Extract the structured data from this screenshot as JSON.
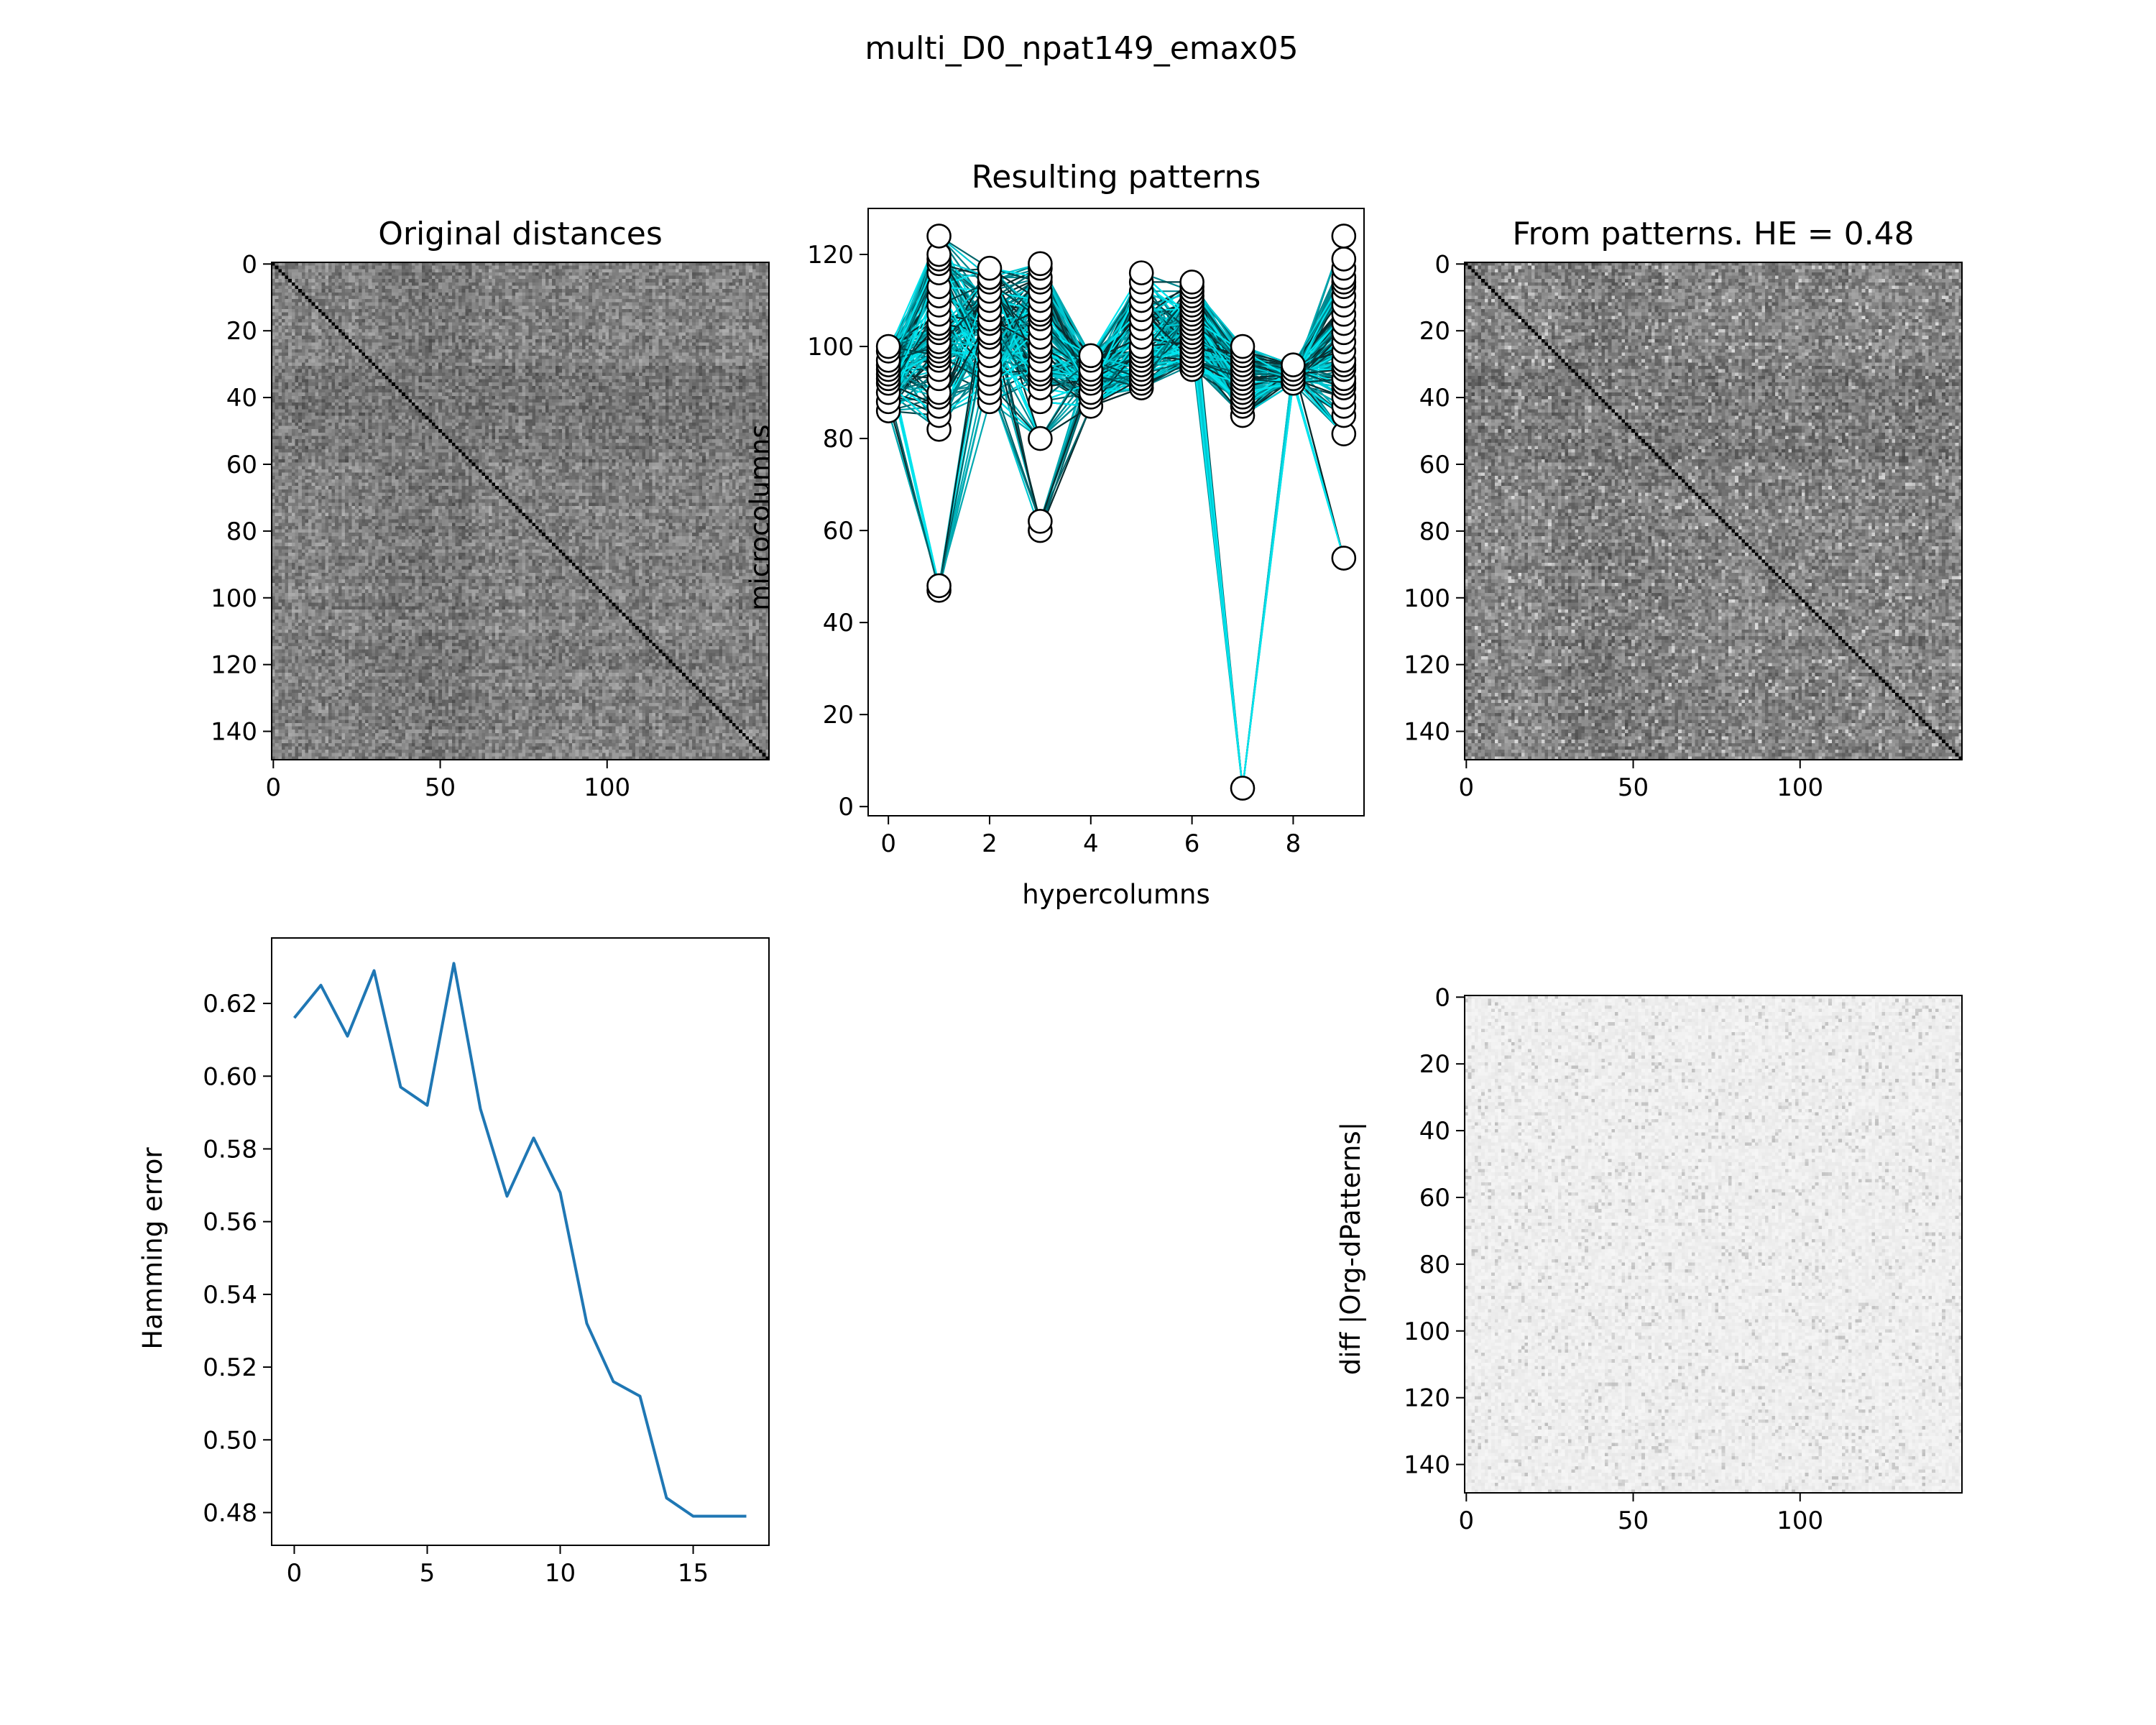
{
  "suptitle": "multi_D0_npat149_emax05",
  "chart_data": [
    {
      "id": "original",
      "type": "heatmap",
      "title": "Original distances",
      "n": 149,
      "cmap": "gray",
      "diagonal": 0,
      "xticks": [
        0,
        50,
        100
      ],
      "yticks": [
        0,
        20,
        40,
        60,
        80,
        100,
        120,
        140
      ]
    },
    {
      "id": "patterns",
      "type": "line",
      "title": "Resulting patterns",
      "xlabel": "hypercolumns",
      "ylabel": "microcolumns",
      "xlim": [
        -0.4,
        9.4
      ],
      "ylim": [
        -2,
        130
      ],
      "xticks": [
        0,
        2,
        4,
        6,
        8
      ],
      "yticks": [
        0,
        20,
        40,
        60,
        80,
        100,
        120
      ],
      "num_patterns": 149,
      "colors": [
        "#00e5ee",
        "#00c8d2",
        "#00a8b0",
        "#00868e",
        "#00646a",
        "#004448",
        "#0a2a2c"
      ],
      "unit_values": [
        [
          86,
          88,
          90,
          92,
          93,
          94,
          95,
          96,
          97,
          99,
          100
        ],
        [
          47,
          48,
          82,
          85,
          87,
          89,
          90,
          93,
          95,
          97,
          98,
          99,
          100,
          101,
          103,
          104,
          105,
          107,
          109,
          111,
          113,
          116,
          118,
          119,
          120,
          124
        ],
        [
          88,
          90,
          92,
          94,
          96,
          98,
          100,
          102,
          103,
          105,
          106,
          108,
          110,
          112,
          114,
          115,
          117
        ],
        [
          60,
          62,
          80,
          88,
          91,
          93,
          94,
          95,
          97,
          99,
          100,
          102,
          104,
          106,
          107,
          108,
          110,
          112,
          114,
          115,
          117,
          118
        ],
        [
          87,
          89,
          90,
          92,
          93,
          94,
          95,
          97,
          98
        ],
        [
          91,
          92,
          93,
          94,
          95,
          96,
          97,
          98,
          99,
          100,
          102,
          104,
          106,
          108,
          110,
          112,
          114,
          116
        ],
        [
          95,
          96,
          97,
          98,
          99,
          100,
          101,
          102,
          103,
          104,
          105,
          106,
          107,
          108,
          109,
          110,
          111,
          112,
          113,
          114
        ],
        [
          4,
          85,
          87,
          88,
          89,
          90,
          91,
          92,
          93,
          94,
          95,
          96,
          97,
          98,
          99,
          100
        ],
        [
          92,
          93,
          94,
          95,
          96
        ],
        [
          54,
          81,
          85,
          87,
          89,
          91,
          92,
          93,
          95,
          96,
          97,
          99,
          101,
          103,
          105,
          107,
          109,
          111,
          113,
          114,
          115,
          117,
          119,
          124
        ]
      ]
    },
    {
      "id": "from-patterns",
      "type": "heatmap",
      "title": "From patterns. HE = 0.48",
      "n": 149,
      "cmap": "gray",
      "diagonal": 0,
      "xticks": [
        0,
        50,
        100
      ],
      "yticks": [
        0,
        20,
        40,
        60,
        80,
        100,
        120,
        140
      ]
    },
    {
      "id": "hamming",
      "type": "line",
      "xlabel": "",
      "ylabel": "Hamming error",
      "x": [
        0,
        1,
        2,
        3,
        4,
        5,
        6,
        7,
        8,
        9,
        10,
        11,
        12,
        13,
        14,
        15,
        16,
        17
      ],
      "y": [
        0.616,
        0.625,
        0.611,
        0.629,
        0.597,
        0.592,
        0.631,
        0.591,
        0.567,
        0.583,
        0.568,
        0.532,
        0.516,
        0.512,
        0.484,
        0.479,
        0.479,
        0.479
      ],
      "xlim": [
        -0.85,
        17.85
      ],
      "ylim": [
        0.471,
        0.638
      ],
      "xticks": [
        0,
        5,
        10,
        15
      ],
      "yticks": [
        0.48,
        0.5,
        0.52,
        0.54,
        0.56,
        0.58,
        0.6,
        0.62
      ],
      "color": "#1f77b4"
    },
    {
      "id": "diff",
      "type": "heatmap",
      "ylabel": "diff |Org-dPatterns|",
      "n": 149,
      "cmap": "gray_r",
      "xticks": [
        0,
        50,
        100
      ],
      "yticks": [
        0,
        20,
        40,
        60,
        80,
        100,
        120,
        140
      ]
    }
  ]
}
